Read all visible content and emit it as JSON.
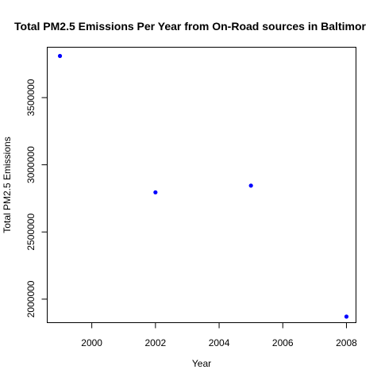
{
  "chart_data": {
    "type": "scatter",
    "title": "Total PM2.5 Emissions Per Year from On-Road sources in Baltimor",
    "xlabel": "Year",
    "ylabel": "Total PM2.5 Emissions",
    "x": [
      1999,
      2002,
      2005,
      2008
    ],
    "y": [
      3810000,
      2795000,
      2845000,
      1870000
    ],
    "xlim": [
      1998.6,
      2008.3
    ],
    "ylim": [
      1825000,
      3875000
    ],
    "xticks": [
      2000,
      2002,
      2004,
      2006,
      2008
    ],
    "yticks": [
      2000000,
      2500000,
      3000000,
      3500000
    ],
    "xtick_labels": [
      "2000",
      "2002",
      "2004",
      "2006",
      "2008"
    ],
    "ytick_labels": [
      "2000000",
      "2500000",
      "3000000",
      "3500000"
    ],
    "point_color": "#0000ff",
    "grid": false,
    "legend": "none"
  }
}
